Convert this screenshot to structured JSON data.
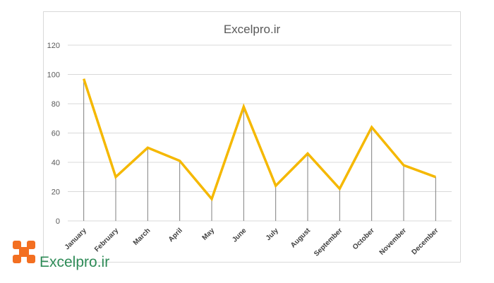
{
  "chart_data": {
    "type": "line",
    "title": "Excelpro.ir",
    "categories": [
      "January",
      "February",
      "March",
      "April",
      "May",
      "June",
      "July",
      "August",
      "September",
      "October",
      "November",
      "December"
    ],
    "series": [
      {
        "values": [
          97,
          30,
          50,
          41,
          15,
          78,
          24,
          46,
          22,
          64,
          38,
          30
        ]
      }
    ],
    "ylim": [
      0,
      120
    ],
    "yticks": [
      0,
      20,
      40,
      60,
      80,
      100,
      120
    ],
    "grid": "horizontal",
    "drop_lines": true,
    "colors": {
      "line": "#f5b800",
      "grid": "#d9d9d9",
      "drop_line": "#7f7f7f"
    }
  },
  "logo": {
    "text": "Excelpro.ir",
    "icon": "excelpro-logo-icon",
    "colors": {
      "icon": "#f36f21",
      "text": "#2e8b57"
    }
  }
}
